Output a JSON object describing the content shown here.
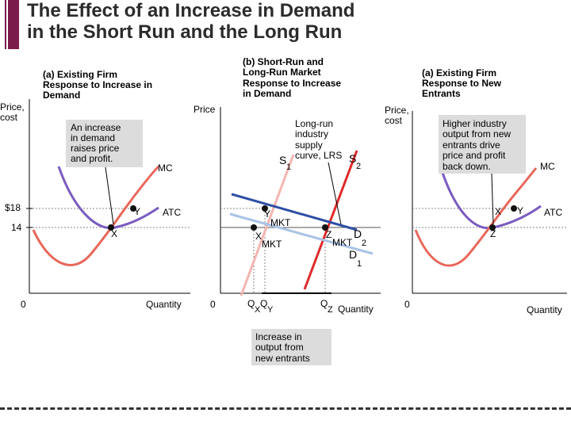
{
  "title": {
    "line1": "The Effect of an Increase in Demand",
    "line2": "in the Short Run and the Long Run"
  },
  "chart_data": [
    {
      "type": "line",
      "panel": "left",
      "heading": [
        "(a) Existing Firm",
        "Response to Increase in",
        "Demand"
      ],
      "ylabel": [
        "Price,",
        "cost"
      ],
      "xlabel": "Quantity",
      "origin": "0",
      "yticks": [
        "$18",
        "14"
      ],
      "callout": [
        "An increase",
        "in demand",
        "raises price",
        "and profit."
      ],
      "curves": [
        "MC",
        "ATC"
      ],
      "points": [
        "X",
        "Y"
      ]
    },
    {
      "type": "line",
      "panel": "middle",
      "heading": [
        "(b) Short-Run and",
        "Long-Run Market",
        "Response to Increase",
        "in Demand"
      ],
      "ylabel": "Price",
      "xlabel": "Quantity",
      "origin": "0",
      "supply_labels": {
        "s1": "S",
        "s1_sub": "1",
        "s2": "S",
        "s2_sub": "2"
      },
      "lrs_note": [
        "Long-run",
        "industry",
        "supply",
        "curve, LRS"
      ],
      "demand_labels": {
        "d1": "D",
        "d1_sub": "1",
        "d2": "D",
        "d2_sub": "2"
      },
      "points": [
        "Y",
        "X",
        "Z"
      ],
      "point_sub": "MKT",
      "q_labels": {
        "q": "Q",
        "x": "X",
        "y": "Y",
        "z": "Z"
      },
      "callout": [
        "Increase in",
        "output from",
        "new  entrants"
      ]
    },
    {
      "type": "line",
      "panel": "right",
      "heading": [
        "(a) Existing Firm",
        "Response to New",
        "Entrants"
      ],
      "ylabel": [
        "Price,",
        "cost"
      ],
      "xlabel": "Quantity",
      "origin": "0",
      "callout": [
        "Higher industry",
        "output from new",
        "entrants drive",
        "price and profit",
        "back down."
      ],
      "curves": [
        "MC",
        "ATC"
      ],
      "points": [
        "X",
        "Y",
        "Z"
      ]
    }
  ]
}
